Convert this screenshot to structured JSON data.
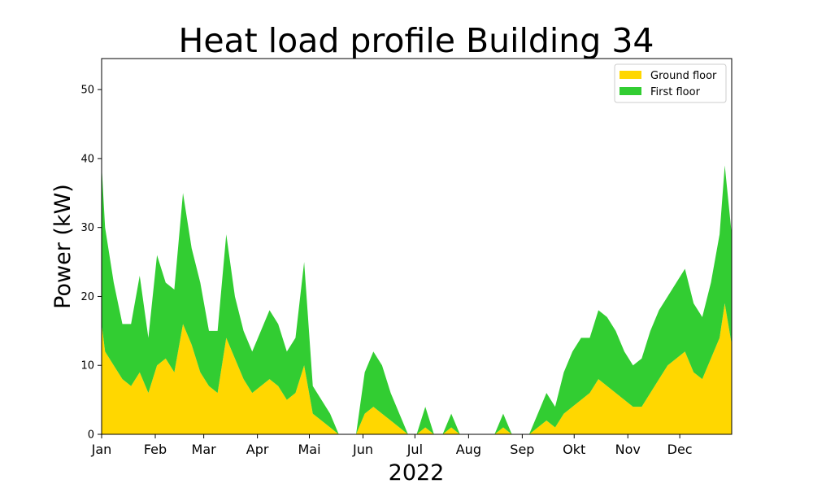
{
  "chart_data": {
    "type": "area",
    "stacked": true,
    "title": "Heat load profile Building 34",
    "xlabel": "2022",
    "ylabel": "Power (kW)",
    "xlim": [
      "2022-01-01",
      "2022-12-31"
    ],
    "ylim": [
      0,
      54.5
    ],
    "grid": false,
    "legend_position": "top-right",
    "x_ticks": [
      {
        "date": "2022-01-01",
        "label": "Jan"
      },
      {
        "date": "2022-02-01",
        "label": "Feb"
      },
      {
        "date": "2022-03-01",
        "label": "Mar"
      },
      {
        "date": "2022-04-01",
        "label": "Apr"
      },
      {
        "date": "2022-05-01",
        "label": "Mai"
      },
      {
        "date": "2022-06-01",
        "label": "Jun"
      },
      {
        "date": "2022-07-01",
        "label": "Jul"
      },
      {
        "date": "2022-08-01",
        "label": "Aug"
      },
      {
        "date": "2022-09-01",
        "label": "Sep"
      },
      {
        "date": "2022-10-01",
        "label": "Okt"
      },
      {
        "date": "2022-11-01",
        "label": "Nov"
      },
      {
        "date": "2022-12-01",
        "label": "Dec"
      }
    ],
    "y_ticks": [
      0,
      10,
      20,
      30,
      40,
      50
    ],
    "x": [
      "2022-01-01",
      "2022-01-03",
      "2022-01-08",
      "2022-01-13",
      "2022-01-18",
      "2022-01-23",
      "2022-01-28",
      "2022-02-02",
      "2022-02-07",
      "2022-02-12",
      "2022-02-17",
      "2022-02-22",
      "2022-02-27",
      "2022-03-04",
      "2022-03-09",
      "2022-03-14",
      "2022-03-19",
      "2022-03-24",
      "2022-03-29",
      "2022-04-03",
      "2022-04-08",
      "2022-04-13",
      "2022-04-18",
      "2022-04-23",
      "2022-04-28",
      "2022-05-03",
      "2022-05-08",
      "2022-05-13",
      "2022-05-18",
      "2022-05-23",
      "2022-05-28",
      "2022-06-02",
      "2022-06-07",
      "2022-06-12",
      "2022-06-17",
      "2022-06-22",
      "2022-06-27",
      "2022-07-02",
      "2022-07-07",
      "2022-07-12",
      "2022-07-17",
      "2022-07-22",
      "2022-07-27",
      "2022-08-01",
      "2022-08-06",
      "2022-08-11",
      "2022-08-16",
      "2022-08-21",
      "2022-08-26",
      "2022-08-31",
      "2022-09-05",
      "2022-09-10",
      "2022-09-15",
      "2022-09-20",
      "2022-09-25",
      "2022-09-30",
      "2022-10-05",
      "2022-10-10",
      "2022-10-15",
      "2022-10-20",
      "2022-10-25",
      "2022-10-30",
      "2022-11-04",
      "2022-11-09",
      "2022-11-14",
      "2022-11-19",
      "2022-11-24",
      "2022-11-29",
      "2022-12-04",
      "2022-12-09",
      "2022-12-14",
      "2022-12-19",
      "2022-12-24",
      "2022-12-27",
      "2022-12-31"
    ],
    "series": [
      {
        "name": "Ground floor",
        "color": "#FFD700",
        "values": [
          16,
          12,
          10,
          8,
          7,
          9,
          6,
          10,
          11,
          9,
          16,
          13,
          9,
          7,
          6,
          14,
          11,
          8,
          6,
          7,
          8,
          7,
          5,
          6,
          10,
          3,
          2,
          1,
          0,
          0,
          0,
          3,
          4,
          3,
          2,
          1,
          0,
          0,
          1,
          0,
          0,
          1,
          0,
          0,
          0,
          0,
          0,
          1,
          0,
          0,
          0,
          1,
          2,
          1,
          3,
          4,
          5,
          6,
          8,
          7,
          6,
          5,
          4,
          4,
          6,
          8,
          10,
          11,
          12,
          9,
          8,
          11,
          14,
          19,
          13
        ]
      },
      {
        "name": "First floor",
        "color": "#32CD32",
        "values": [
          23,
          18,
          12,
          8,
          9,
          14,
          8,
          16,
          11,
          12,
          19,
          14,
          13,
          8,
          9,
          15,
          9,
          7,
          6,
          8,
          10,
          9,
          7,
          8,
          15,
          4,
          3,
          2,
          0,
          0,
          0,
          6,
          8,
          7,
          4,
          2,
          0,
          0,
          3,
          0,
          0,
          2,
          0,
          0,
          0,
          0,
          0,
          2,
          0,
          0,
          0,
          2,
          4,
          3,
          6,
          8,
          9,
          8,
          10,
          10,
          9,
          7,
          6,
          7,
          9,
          10,
          10,
          11,
          12,
          10,
          9,
          11,
          15,
          20,
          16
        ]
      }
    ]
  }
}
